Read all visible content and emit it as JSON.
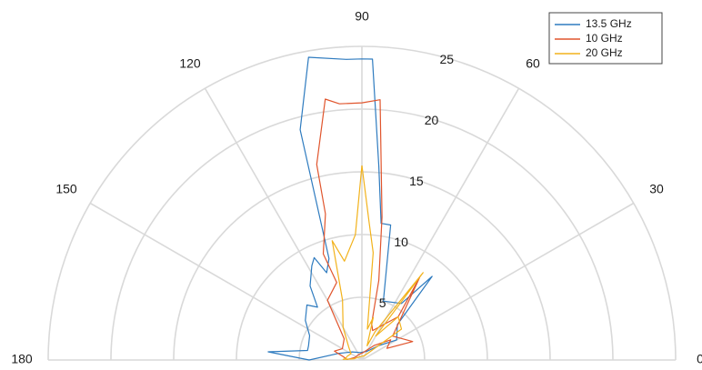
{
  "chart_data": {
    "type": "line",
    "subtype": "polar-half",
    "r_max": 25,
    "radial_ticks": [
      5,
      10,
      15,
      20,
      25
    ],
    "angle_ticks": [
      0,
      30,
      60,
      90,
      120,
      150,
      180
    ],
    "grid": true,
    "legend_position": "top-right",
    "series": [
      {
        "name": "13.5 GHz",
        "color": "#2e7bbf",
        "points": [
          [
            90,
            24
          ],
          [
            93,
            24
          ],
          [
            100,
            24.5
          ],
          [
            105,
            19
          ],
          [
            108,
            8.5
          ],
          [
            112,
            7.5
          ],
          [
            115,
            9
          ],
          [
            118,
            8.5
          ],
          [
            125,
            7.2
          ],
          [
            130,
            5.5
          ],
          [
            135,
            6.2
          ],
          [
            145,
            5.5
          ],
          [
            155,
            4.6
          ],
          [
            165,
            4.4
          ],
          [
            170,
            4.4
          ],
          [
            175,
            7.5
          ],
          [
            180,
            4.2
          ],
          [
            165,
            2
          ],
          [
            140,
            1
          ],
          [
            100,
            0.6
          ],
          [
            60,
            0.8
          ],
          [
            40,
            1.8
          ],
          [
            30,
            3.2
          ],
          [
            45,
            4
          ],
          [
            50,
            8.7
          ],
          [
            55,
            5.5
          ],
          [
            70,
            5
          ],
          [
            78,
            11
          ],
          [
            82,
            11
          ],
          [
            85,
            15.5
          ],
          [
            88,
            24
          ],
          [
            90,
            24
          ]
        ]
      },
      {
        "name": "10 GHz",
        "color": "#e0552d",
        "points": [
          [
            90,
            20.5
          ],
          [
            95,
            20.5
          ],
          [
            98,
            21
          ],
          [
            103,
            16
          ],
          [
            104,
            12
          ],
          [
            110,
            9
          ],
          [
            108,
            6.5
          ],
          [
            120,
            5.5
          ],
          [
            130,
            2.2
          ],
          [
            150,
            1.8
          ],
          [
            162,
            2.3
          ],
          [
            170,
            1.5
          ],
          [
            178,
            1.2
          ],
          [
            175,
            1
          ],
          [
            160,
            0.6
          ],
          [
            120,
            0.5
          ],
          [
            80,
            0.6
          ],
          [
            50,
            1.5
          ],
          [
            35,
            2.8
          ],
          [
            25,
            2.2
          ],
          [
            20,
            4.3
          ],
          [
            38,
            3.1
          ],
          [
            55,
            8
          ],
          [
            50,
            4.5
          ],
          [
            70,
            2.5
          ],
          [
            75,
            3
          ],
          [
            78,
            6.5
          ],
          [
            82,
            11.5
          ],
          [
            86,
            20.8
          ],
          [
            90,
            20.5
          ]
        ]
      },
      {
        "name": "20 GHz",
        "color": "#f2b21b",
        "points": [
          [
            90,
            15.5
          ],
          [
            93,
            10
          ],
          [
            100,
            8
          ],
          [
            104,
            9.8
          ],
          [
            108,
            5
          ],
          [
            120,
            3
          ],
          [
            135,
            1.5
          ],
          [
            150,
            1
          ],
          [
            165,
            1.2
          ],
          [
            175,
            1.3
          ],
          [
            178,
            1.5
          ],
          [
            170,
            0.6
          ],
          [
            150,
            0.4
          ],
          [
            120,
            0.3
          ],
          [
            90,
            0.3
          ],
          [
            60,
            0.4
          ],
          [
            45,
            1
          ],
          [
            38,
            4
          ],
          [
            50,
            4.5
          ],
          [
            60,
            2.2
          ],
          [
            55,
            8.5
          ],
          [
            65,
            2.5
          ],
          [
            70,
            1.2
          ],
          [
            75,
            3.5
          ],
          [
            80,
            2.5
          ],
          [
            84,
            8.6
          ],
          [
            87,
            11
          ],
          [
            90,
            15.5
          ]
        ]
      }
    ]
  }
}
